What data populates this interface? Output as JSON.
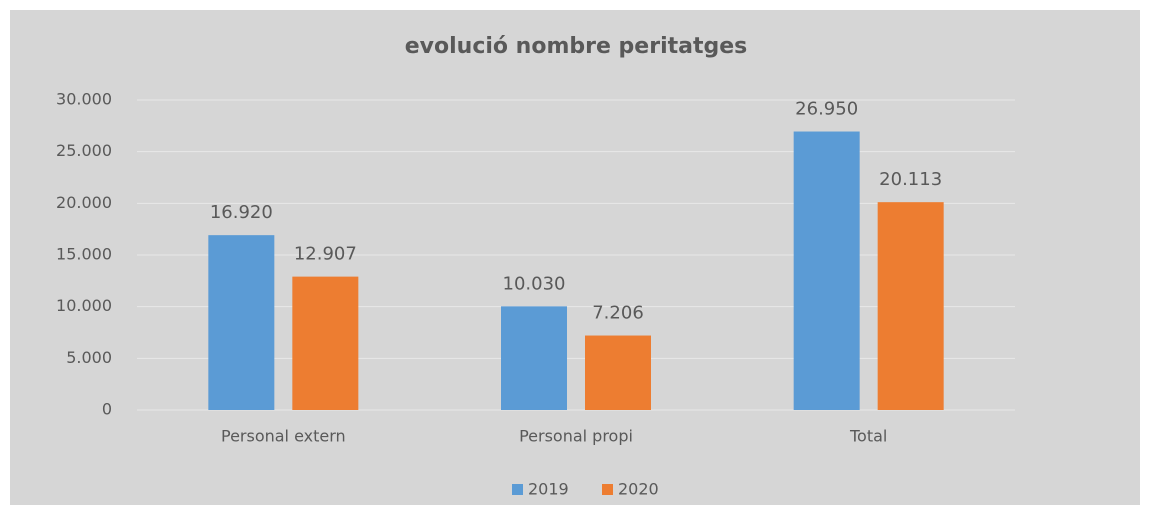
{
  "chart_data": {
    "type": "bar",
    "title": "evolució nombre peritatges",
    "categories": [
      "Personal extern",
      "Personal propi",
      "Total"
    ],
    "series": [
      {
        "name": "2019",
        "color": "#5b9bd5",
        "values": [
          16920,
          10030,
          26950
        ],
        "value_labels": [
          "16.920",
          "10.030",
          "26.950"
        ]
      },
      {
        "name": "2020",
        "color": "#ed7d31",
        "values": [
          12907,
          7206,
          20113
        ],
        "value_labels": [
          "12.907",
          "7.206",
          "20.113"
        ]
      }
    ],
    "ylim": [
      0,
      30000
    ],
    "yticks": [
      0,
      {
        "value": 5000,
        "label": "5.000"
      },
      {
        "value": 10000,
        "label": "10.000"
      },
      {
        "value": 15000,
        "label": "15.000"
      },
      {
        "value": 20000,
        "label": "20.000"
      },
      {
        "value": 25000,
        "label": "25.000"
      },
      {
        "value": 30000,
        "label": "30.000"
      }
    ],
    "grid": true,
    "legend": "bottom"
  }
}
